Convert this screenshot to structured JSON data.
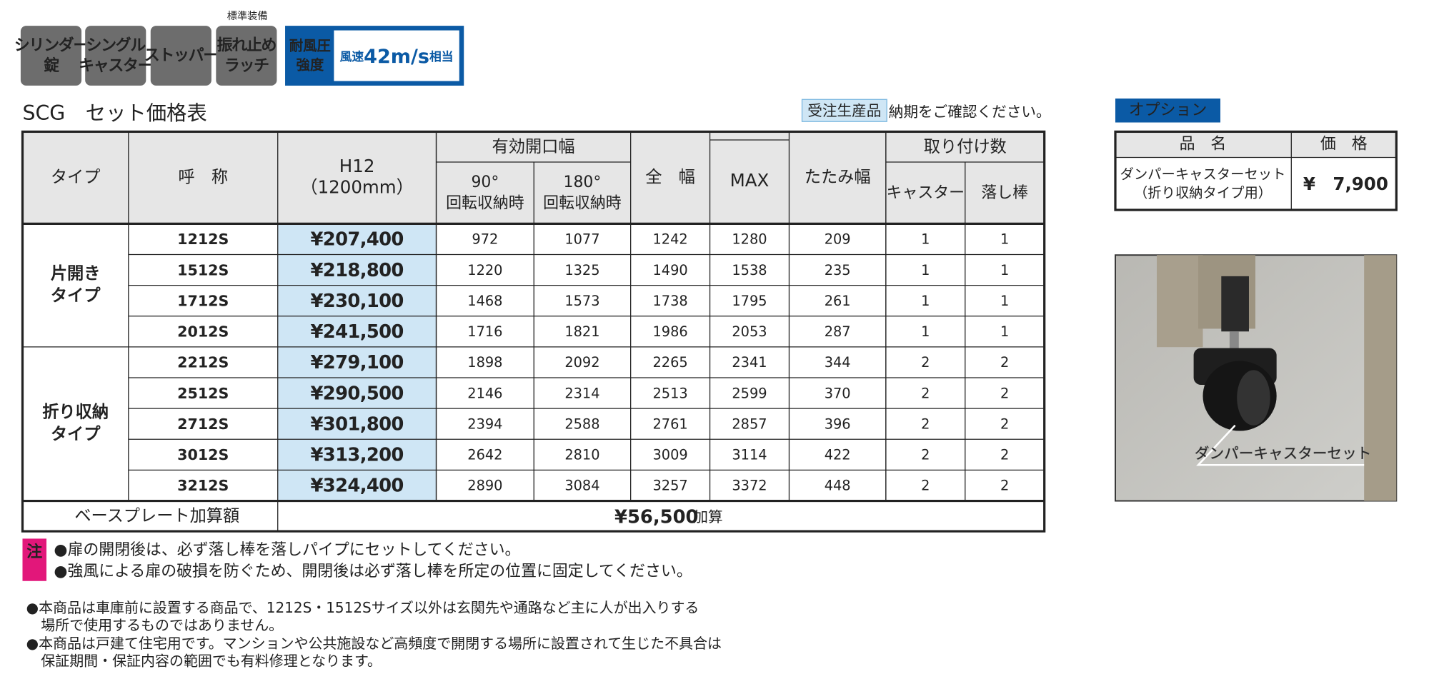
{
  "badges": {
    "standard": "標準装備",
    "items": [
      {
        "lines": [
          "シリンダー",
          "錠"
        ]
      },
      {
        "lines": [
          "シングル",
          "キャスター"
        ]
      },
      {
        "lines": [
          "ストッパー"
        ]
      },
      {
        "lines": [
          "振れ止め",
          "ラッチ"
        ]
      }
    ],
    "wind": {
      "lines": [
        "耐風圧",
        "強度"
      ],
      "value": [
        "風速",
        "42m/s",
        "相当"
      ]
    }
  },
  "title": "SCG　セット価格表",
  "made_to_order": "受注生産品",
  "delivery_note": "納期をご確認ください。",
  "table": {
    "header": {
      "type": "タイプ",
      "name": "呼　称",
      "h12": [
        "H12",
        "（1200mm）"
      ],
      "opening": "有効開口幅",
      "deg90": [
        "90°",
        "回転収納時"
      ],
      "deg180": [
        "180°",
        "回転収納時"
      ],
      "width": "全　幅",
      "max": "MAX",
      "fold": "たたみ幅",
      "count": "取り付け数",
      "caster": "キャスター",
      "rod": "落し棒"
    },
    "groups": [
      {
        "label": [
          "片開き",
          "タイプ"
        ],
        "rows": [
          [
            "1212S",
            "¥207,400",
            "972",
            "1077",
            "1242",
            "1280",
            "209",
            "1",
            "1"
          ],
          [
            "1512S",
            "¥218,800",
            "1220",
            "1325",
            "1490",
            "1538",
            "235",
            "1",
            "1"
          ],
          [
            "1712S",
            "¥230,100",
            "1468",
            "1573",
            "1738",
            "1795",
            "261",
            "1",
            "1"
          ],
          [
            "2012S",
            "¥241,500",
            "1716",
            "1821",
            "1986",
            "2053",
            "287",
            "1",
            "1"
          ]
        ]
      },
      {
        "label": [
          "折り収納",
          "タイプ"
        ],
        "rows": [
          [
            "2212S",
            "¥279,100",
            "1898",
            "2092",
            "2265",
            "2341",
            "344",
            "2",
            "2"
          ],
          [
            "2512S",
            "¥290,500",
            "2146",
            "2314",
            "2513",
            "2599",
            "370",
            "2",
            "2"
          ],
          [
            "2712S",
            "¥301,800",
            "2394",
            "2588",
            "2761",
            "2857",
            "396",
            "2",
            "2"
          ],
          [
            "3012S",
            "¥313,200",
            "2642",
            "2810",
            "3009",
            "3114",
            "422",
            "2",
            "2"
          ],
          [
            "3212S",
            "¥324,400",
            "2890",
            "3084",
            "3257",
            "3372",
            "448",
            "2",
            "2"
          ]
        ]
      }
    ],
    "base_plate": {
      "label": "ベースプレート加算額",
      "price": "¥56,500",
      "suffix": "加算"
    }
  },
  "notes": {
    "mark": "注",
    "items": [
      "●扉の開閉後は、必ず落し棒を落しパイプにセットしてください。",
      "●強風による扉の破損を防ぐため、開閉後は必ず落し棒を所定の位置に固定してください。"
    ]
  },
  "cautions": [
    {
      "lines": [
        "●本商品は車庫前に設置する商品で、1212S・1512Sサイズ以外は玄関先や通路など主に人が出入りする",
        "場所で使用するものではありません。"
      ]
    },
    {
      "lines": [
        "●本商品は戸建て住宅用です。マンションや公共施設など高頻度で開閉する場所に設置されて生じた不具合は",
        "保証期間・保証内容の範囲でも有料修理となります。"
      ]
    }
  ],
  "option": {
    "label": "オプション",
    "header": [
      "品　名",
      "価　格"
    ],
    "item": [
      "ダンパーキャスターセット",
      "（折り収納タイプ用）"
    ],
    "price": "¥　7,900",
    "photo_caption": "ダンパーキャスターセット"
  }
}
